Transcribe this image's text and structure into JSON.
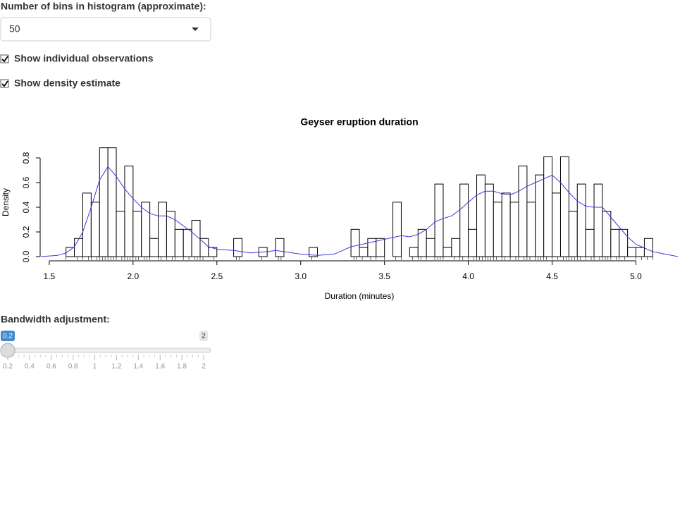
{
  "bins_input": {
    "label": "Number of bins in histogram (approximate):",
    "value": "50"
  },
  "checkboxes": [
    {
      "label": "Show individual observations",
      "checked": true
    },
    {
      "label": "Show density estimate",
      "checked": true
    }
  ],
  "chart_data": {
    "type": "histogram",
    "title": "Geyser eruption duration",
    "xlabel": "Duration (minutes)",
    "ylabel": "Density",
    "bins": [
      1.6,
      1.65,
      1.7,
      1.75,
      1.8,
      1.85,
      1.9,
      1.95,
      2.0,
      2.05,
      2.1,
      2.15,
      2.2,
      2.25,
      2.3,
      2.35,
      2.4,
      2.45,
      2.5,
      2.55,
      2.6,
      2.65,
      2.7,
      2.75,
      2.8,
      2.85,
      2.9,
      2.95,
      3.0,
      3.05,
      3.1,
      3.15,
      3.2,
      3.25,
      3.3,
      3.35,
      3.4,
      3.45,
      3.5,
      3.55,
      3.6,
      3.65,
      3.7,
      3.75,
      3.8,
      3.85,
      3.9,
      3.95,
      4.0,
      4.05,
      4.1,
      4.15,
      4.2,
      4.25,
      4.3,
      4.35,
      4.4,
      4.45,
      4.5,
      4.55,
      4.6,
      4.65,
      4.7,
      4.75,
      4.8,
      4.85,
      4.9,
      4.95,
      5.0,
      5.05,
      5.1
    ],
    "values": [
      0.074,
      0.147,
      0.515,
      0.441,
      0.882,
      0.882,
      0.368,
      0.735,
      0.368,
      0.441,
      0.147,
      0.441,
      0.368,
      0.221,
      0.221,
      0.294,
      0.147,
      0.074,
      0,
      0,
      0.147,
      0,
      0,
      0.074,
      0,
      0.147,
      0,
      0,
      0,
      0.074,
      0,
      0,
      0,
      0,
      0.221,
      0.074,
      0.147,
      0.147,
      0,
      0.441,
      0,
      0.074,
      0.221,
      0.147,
      0.588,
      0.074,
      0.147,
      0.588,
      0.221,
      0.662,
      0.588,
      0.441,
      0.515,
      0.441,
      0.735,
      0.441,
      0.662,
      0.809,
      0.515,
      0.809,
      0.368,
      0.588,
      0.221,
      0.588,
      0.368,
      0.221,
      0.221,
      0.074,
      0.074,
      0.147
    ],
    "bar_color": "#ffffff",
    "edge_color": "#000000",
    "density": {
      "color": "#3b3bdf",
      "x": [
        1.45,
        1.55,
        1.6,
        1.65,
        1.7,
        1.75,
        1.8,
        1.85,
        1.9,
        1.95,
        2.0,
        2.05,
        2.1,
        2.15,
        2.2,
        2.25,
        2.3,
        2.35,
        2.4,
        2.45,
        2.5,
        2.6,
        2.7,
        2.8,
        2.85,
        2.9,
        3.0,
        3.1,
        3.2,
        3.25,
        3.3,
        3.4,
        3.5,
        3.6,
        3.65,
        3.7,
        3.75,
        3.8,
        3.85,
        3.9,
        3.95,
        4.0,
        4.05,
        4.1,
        4.15,
        4.2,
        4.25,
        4.3,
        4.35,
        4.4,
        4.45,
        4.5,
        4.55,
        4.6,
        4.65,
        4.7,
        4.75,
        4.8,
        4.85,
        4.9,
        4.95,
        5.0,
        5.1,
        5.25
      ],
      "y": [
        0,
        0.01,
        0.03,
        0.08,
        0.2,
        0.4,
        0.62,
        0.73,
        0.65,
        0.55,
        0.47,
        0.4,
        0.35,
        0.33,
        0.33,
        0.3,
        0.25,
        0.2,
        0.14,
        0.08,
        0.06,
        0.05,
        0.03,
        0.04,
        0.05,
        0.04,
        0.02,
        0.01,
        0.02,
        0.05,
        0.08,
        0.11,
        0.14,
        0.17,
        0.16,
        0.18,
        0.22,
        0.28,
        0.31,
        0.33,
        0.38,
        0.44,
        0.5,
        0.53,
        0.53,
        0.51,
        0.5,
        0.53,
        0.57,
        0.6,
        0.63,
        0.66,
        0.6,
        0.52,
        0.45,
        0.41,
        0.4,
        0.4,
        0.32,
        0.24,
        0.16,
        0.1,
        0.04,
        0
      ]
    },
    "rug": [
      1.6,
      1.667,
      1.7,
      1.733,
      1.75,
      1.783,
      1.8,
      1.817,
      1.833,
      1.85,
      1.867,
      1.883,
      1.9,
      1.933,
      1.95,
      1.967,
      1.983,
      2.0,
      2.017,
      2.033,
      2.067,
      2.083,
      2.1,
      2.15,
      2.167,
      2.2,
      2.233,
      2.25,
      2.3,
      2.333,
      2.367,
      2.383,
      2.4,
      2.417,
      2.483,
      2.617,
      2.633,
      2.767,
      2.867,
      2.883,
      3.067,
      3.317,
      3.333,
      3.367,
      3.417,
      3.45,
      3.5,
      3.567,
      3.6,
      3.667,
      3.7,
      3.717,
      3.75,
      3.8,
      3.817,
      3.833,
      3.85,
      3.917,
      3.95,
      3.967,
      4.0,
      4.033,
      4.05,
      4.067,
      4.083,
      4.1,
      4.117,
      4.133,
      4.15,
      4.167,
      4.2,
      4.217,
      4.25,
      4.283,
      4.3,
      4.333,
      4.35,
      4.367,
      4.4,
      4.417,
      4.433,
      4.45,
      4.467,
      4.5,
      4.533,
      4.567,
      4.583,
      4.6,
      4.617,
      4.633,
      4.65,
      4.667,
      4.7,
      4.733,
      4.75,
      4.783,
      4.8,
      4.817,
      4.833,
      4.85,
      4.883,
      4.9,
      4.933,
      5.0,
      5.033,
      5.067,
      5.1
    ],
    "xlim": [
      1.45,
      5.25
    ],
    "ylim": [
      0,
      0.9
    ],
    "xticks": [
      1.5,
      {
        "value": 2,
        "label": "2.0"
      },
      2.5,
      {
        "value": 3,
        "label": "3.0"
      },
      3.5,
      {
        "value": 4,
        "label": "4.0"
      },
      4.5,
      {
        "value": 5,
        "label": "5.0"
      }
    ],
    "yticks": [
      {
        "value": 0,
        "label": "0.0"
      },
      0.2,
      0.4,
      0.6,
      0.8
    ],
    "grid": false
  },
  "slider": {
    "label": "Bandwidth adjustment:",
    "min": 0.2,
    "max": 2,
    "value": 0.2,
    "ticks": [
      0.2,
      0.4,
      0.6,
      0.8,
      1,
      1.2,
      1.4,
      1.6,
      1.8,
      2
    ]
  }
}
